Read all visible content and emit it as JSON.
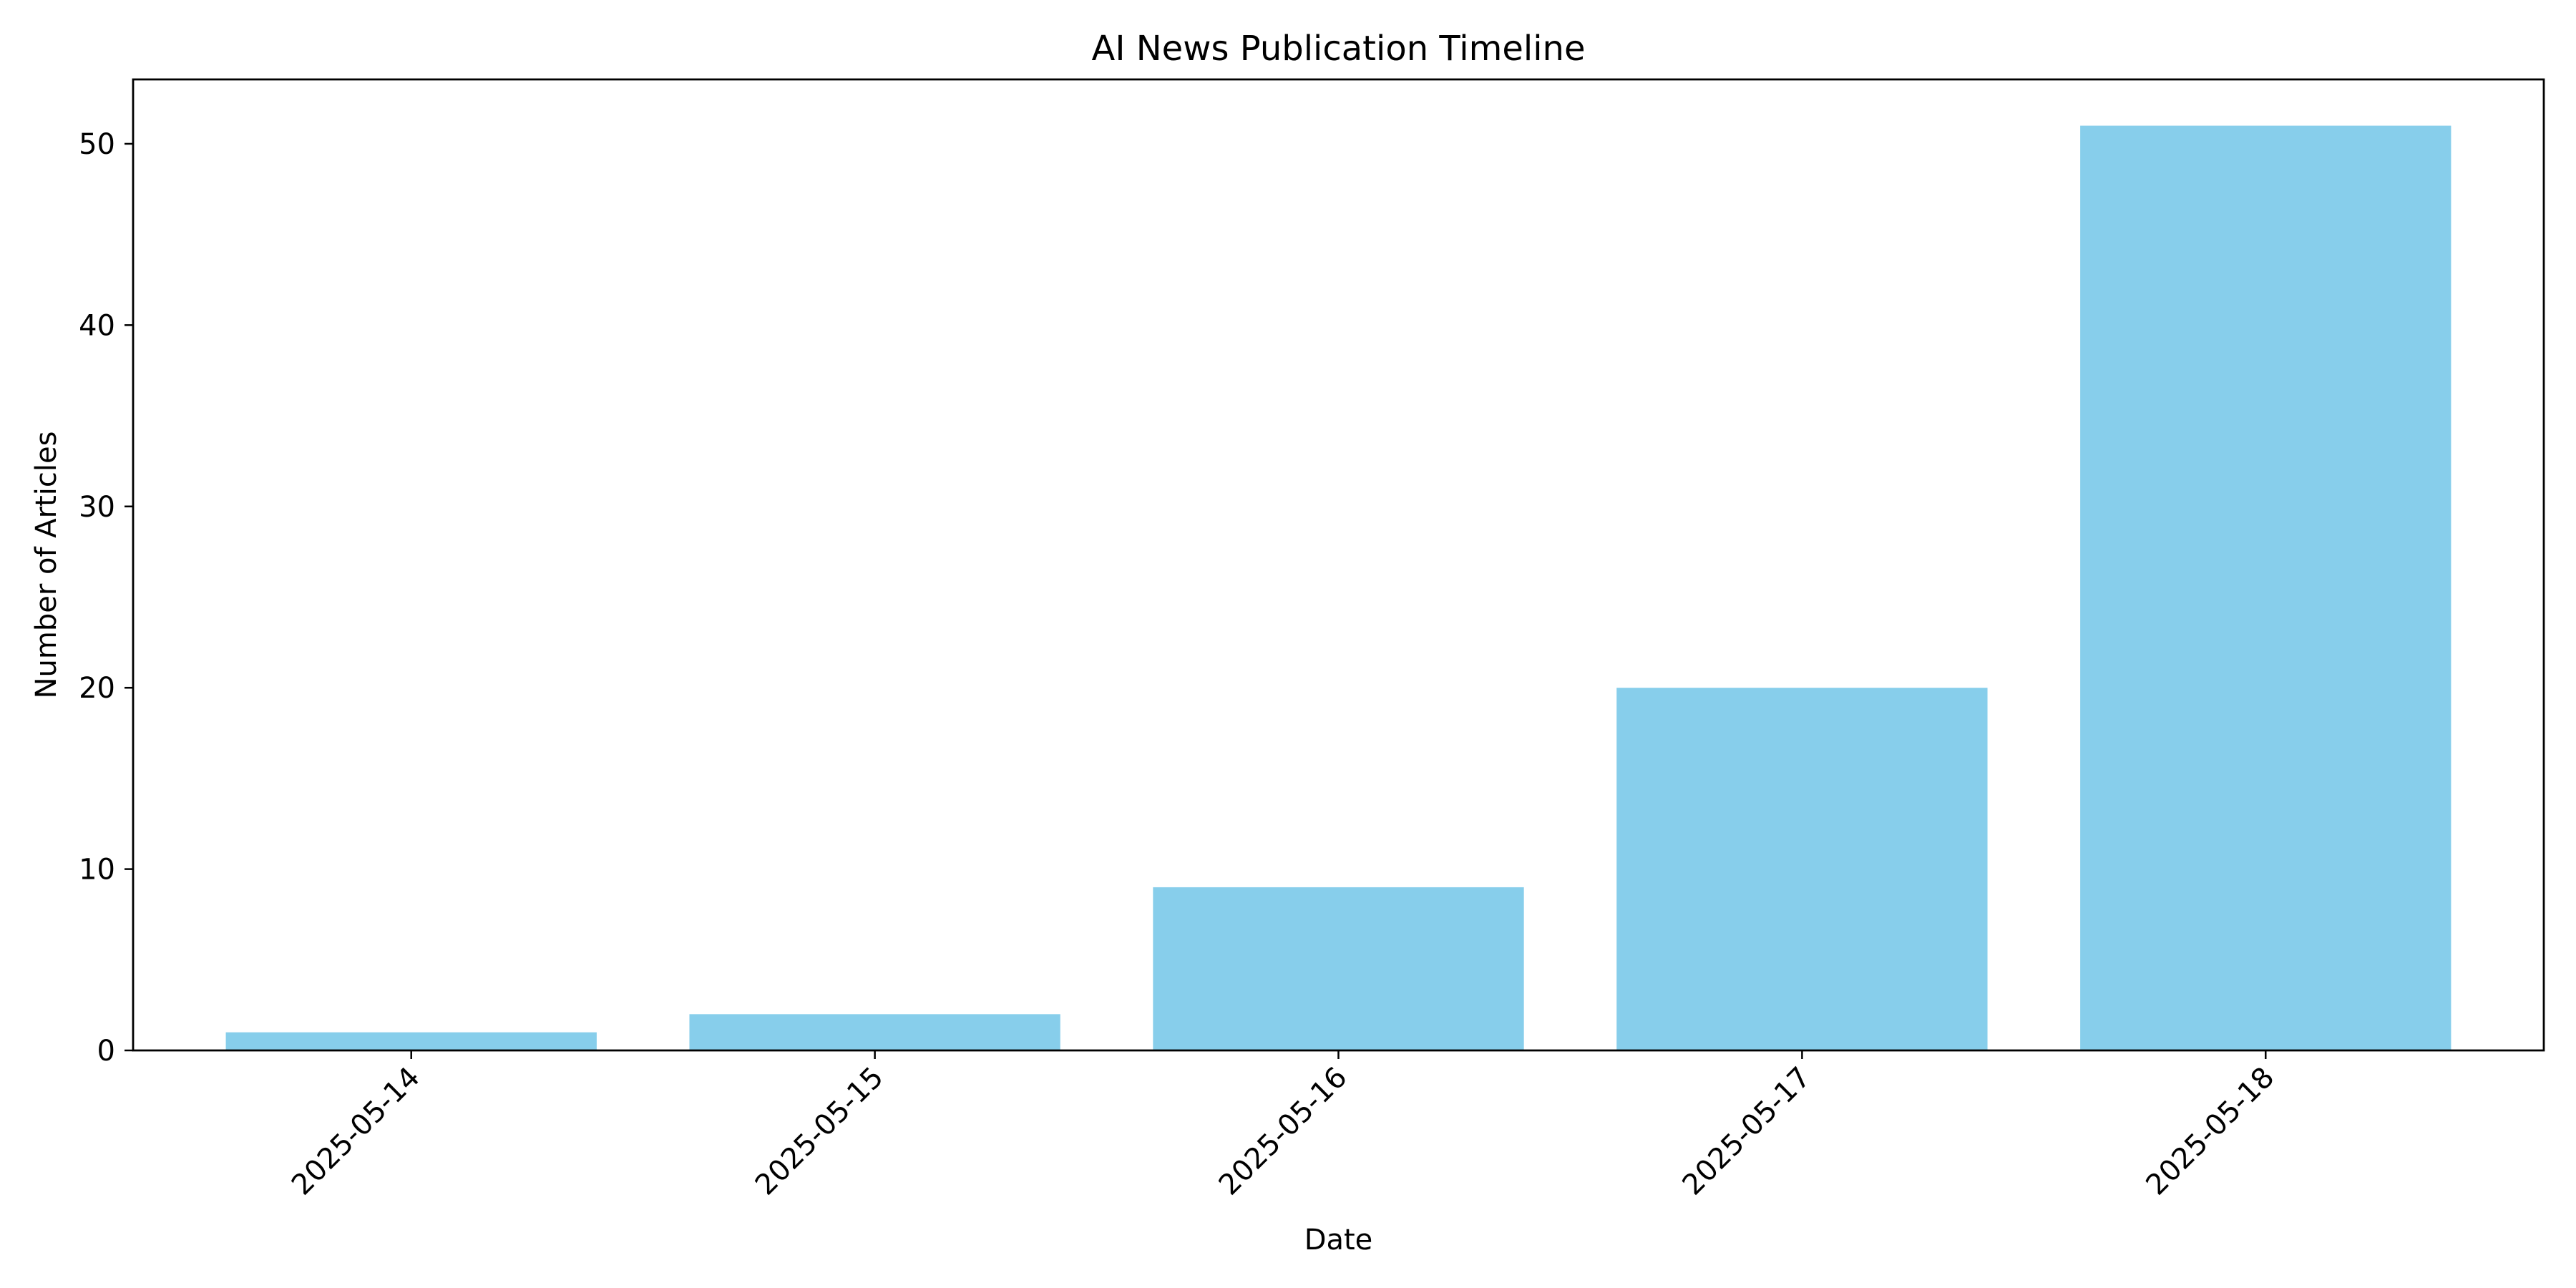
{
  "chart_data": {
    "type": "bar",
    "title": "AI News Publication Timeline",
    "xlabel": "Date",
    "ylabel": "Number of Articles",
    "categories": [
      "2025-05-14",
      "2025-05-15",
      "2025-05-16",
      "2025-05-17",
      "2025-05-18"
    ],
    "values": [
      1,
      2,
      9,
      20,
      51
    ],
    "ylim": [
      0,
      53.55
    ],
    "yticks": [
      0,
      10,
      20,
      30,
      40,
      50
    ],
    "bar_color": "#87ceeb",
    "grid": false,
    "legend": "none",
    "xtick_rotation_deg": 45
  }
}
